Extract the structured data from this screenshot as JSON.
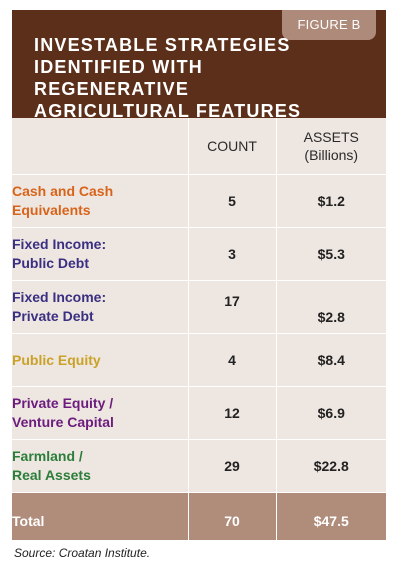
{
  "figure_label": "FIGURE B",
  "title": "INVESTABLE STRATEGIES IDENTIFIED WITH REGENERATIVE AGRICULTURAL FEATURES",
  "source": "Source: Croatan Institute.",
  "colors": {
    "header_bg": "#5c2f1b",
    "tab_bg": "#ad8a79",
    "body_bg": "#eee6e0",
    "total_bg": "#b08d7b"
  },
  "chart_data": {
    "type": "table",
    "columns": [
      "",
      "COUNT",
      "ASSETS\n(Billions)"
    ],
    "rows": [
      {
        "label": "Cash and Cash Equivalents",
        "count": "5",
        "assets": "$1.2",
        "color": "#d8641b"
      },
      {
        "label": "Fixed Income: Public Debt",
        "count": "3",
        "assets": "$5.3",
        "color": "#3a2f82"
      },
      {
        "label": "Fixed Income: Private Debt",
        "count": "17",
        "assets": "$2.8",
        "color": "#3a2f82"
      },
      {
        "label": "Public Equity",
        "count": "4",
        "assets": "$8.4",
        "color": "#c9a227"
      },
      {
        "label": "Private Equity / Venture Capital",
        "count": "12",
        "assets": "$6.9",
        "color": "#6b1c7e"
      },
      {
        "label": "Farmland / Real Assets",
        "count": "29",
        "assets": "$22.8",
        "color": "#2b7d3a"
      }
    ],
    "total": {
      "label": "Total",
      "count": "70",
      "assets": "$47.5"
    }
  }
}
